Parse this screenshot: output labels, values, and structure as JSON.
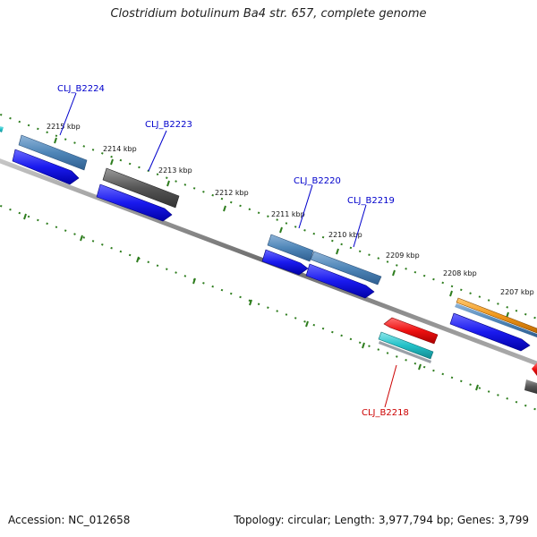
{
  "title": "Clostridium botulinum Ba4 str. 657, complete genome",
  "footer": {
    "accession": "Accession: NC_012658",
    "summary": "Topology: circular; Length: 3,977,794 bp; Genes: 3,799"
  },
  "ticks": [
    {
      "label": "2215 kbp"
    },
    {
      "label": "2214 kbp"
    },
    {
      "label": "2213 kbp"
    },
    {
      "label": "2212 kbp"
    },
    {
      "label": "2211 kbp"
    },
    {
      "label": "2210 kbp"
    },
    {
      "label": "2209 kbp"
    },
    {
      "label": "2208 kbp"
    },
    {
      "label": "2207 kbp"
    }
  ],
  "gene_labels": [
    {
      "label": "CLJ_B2224",
      "color": "#0000cc"
    },
    {
      "label": "CLJ_B2223",
      "color": "#0000cc"
    },
    {
      "label": "CLJ_B2220",
      "color": "#0000cc"
    },
    {
      "label": "CLJ_B2219",
      "color": "#0000cc"
    },
    {
      "label": "CLJ_B2218",
      "color": "#cc0000"
    }
  ],
  "colors": {
    "backbone": "#888888",
    "tick_green": "#2e7d1e",
    "cds_blue": "#1a1aee",
    "gene_steelblue": "#4f86b8",
    "gene_gray": "#555555",
    "cds_red": "#ee1111",
    "teal": "#22c1c8",
    "orange": "#f0981c"
  }
}
